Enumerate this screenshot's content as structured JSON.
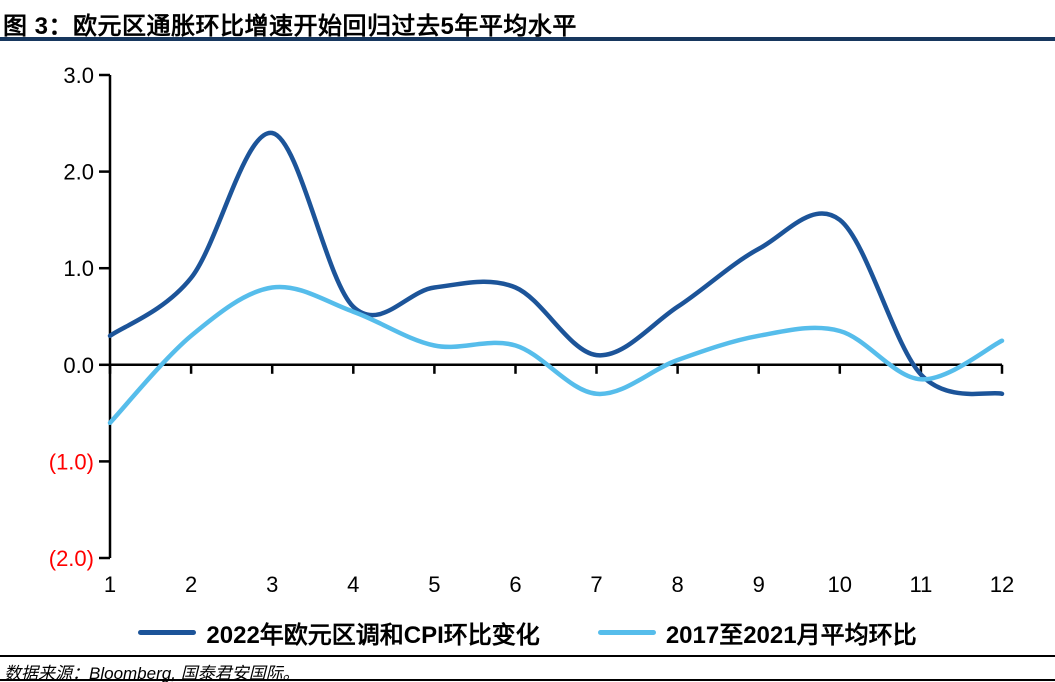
{
  "header": {
    "title": "图 3：欧元区通胀环比增速开始回归过去5年平均水平"
  },
  "footer": {
    "source": "数据来源：Bloomberg, 国泰君安国际。"
  },
  "colors": {
    "title_rule": "#17375E",
    "axis": "#000000",
    "positive_tick_label": "#000000",
    "negative_tick_label": "#FF0000",
    "series_2022": "#1C5499",
    "series_avg": "#56BDEB"
  },
  "chart_data": {
    "type": "line",
    "title": "欧元区通胀环比增速开始回归过去5年平均水平",
    "xlabel": "",
    "ylabel": "",
    "ylim": [
      -2.0,
      3.0
    ],
    "grid": false,
    "smooth": true,
    "legend_position": "bottom",
    "x_labels": [
      "1",
      "2",
      "3",
      "4",
      "5",
      "6",
      "7",
      "8",
      "9",
      "10",
      "11",
      "12"
    ],
    "y_ticks": [
      {
        "label": "3.0",
        "value": 3.0
      },
      {
        "label": "2.0",
        "value": 2.0
      },
      {
        "label": "1.0",
        "value": 1.0
      },
      {
        "label": "0.0",
        "value": 0.0
      },
      {
        "label": "(1.0)",
        "value": -1.0
      },
      {
        "label": "(2.0)",
        "value": -2.0
      }
    ],
    "series": [
      {
        "name": "2022年欧元区调和CPI环比变化",
        "color": "#1C5499",
        "values": [
          0.3,
          0.9,
          2.4,
          0.6,
          0.8,
          0.8,
          0.1,
          0.6,
          1.2,
          1.5,
          -0.1,
          -0.3
        ]
      },
      {
        "name": "2017至2021月平均环比",
        "color": "#56BDEB",
        "values": [
          -0.6,
          0.3,
          0.8,
          0.55,
          0.2,
          0.2,
          -0.3,
          0.05,
          0.3,
          0.35,
          -0.15,
          0.25
        ]
      }
    ]
  }
}
